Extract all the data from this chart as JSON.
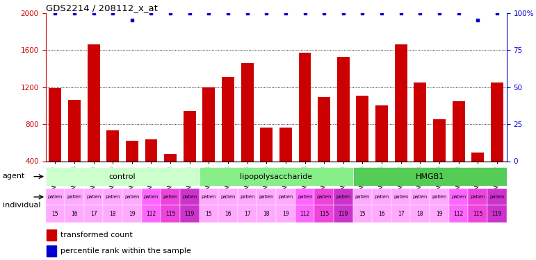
{
  "title": "GDS2214 / 208112_x_at",
  "samples": [
    "GSM66867",
    "GSM66868",
    "GSM66869",
    "GSM66870",
    "GSM66871",
    "GSM66872",
    "GSM66873",
    "GSM66874",
    "GSM66883",
    "GSM66884",
    "GSM66885",
    "GSM66886",
    "GSM66887",
    "GSM66888",
    "GSM66889",
    "GSM66890",
    "GSM66875",
    "GSM66876",
    "GSM66877",
    "GSM66878",
    "GSM66879",
    "GSM66880",
    "GSM66881",
    "GSM66882"
  ],
  "bar_values": [
    1190,
    1060,
    1660,
    730,
    620,
    635,
    475,
    940,
    1195,
    1310,
    1460,
    760,
    760,
    1570,
    1090,
    1530,
    1110,
    1000,
    1660,
    1250,
    850,
    1050,
    490,
    1250
  ],
  "percentile_values": [
    100,
    100,
    100,
    100,
    95,
    100,
    100,
    100,
    100,
    100,
    100,
    100,
    100,
    100,
    100,
    100,
    100,
    100,
    100,
    100,
    100,
    100,
    95,
    100
  ],
  "bar_color": "#cc0000",
  "percentile_color": "#0000cc",
  "ylim_left": [
    400,
    2000
  ],
  "ylim_right": [
    0,
    100
  ],
  "yticks_left": [
    400,
    800,
    1200,
    1600,
    2000
  ],
  "yticks_right": [
    0,
    25,
    50,
    75,
    100
  ],
  "ytick_right_labels": [
    "0",
    "25",
    "50",
    "75",
    "100%"
  ],
  "gridlines": [
    800,
    1200,
    1600
  ],
  "groups": [
    {
      "label": "control",
      "start": 0,
      "end": 8,
      "color": "#ccffcc"
    },
    {
      "label": "lipopolysaccharide",
      "start": 8,
      "end": 16,
      "color": "#88ee88"
    },
    {
      "label": "HMGB1",
      "start": 16,
      "end": 24,
      "color": "#55cc55"
    }
  ],
  "individuals": [
    "15",
    "16",
    "17",
    "18",
    "19",
    "112",
    "115",
    "119",
    "15",
    "16",
    "17",
    "18",
    "19",
    "112",
    "115",
    "119",
    "15",
    "16",
    "17",
    "18",
    "19",
    "112",
    "115",
    "119"
  ],
  "pink_colors": [
    "#ffaaff",
    "#ffaaff",
    "#ffaaff",
    "#ffaaff",
    "#ffaaff",
    "#ff66ff",
    "#ee44dd",
    "#cc33cc"
  ],
  "agent_label": "agent",
  "individual_label": "individual",
  "legend_bar_label": "transformed count",
  "legend_pct_label": "percentile rank within the sample"
}
